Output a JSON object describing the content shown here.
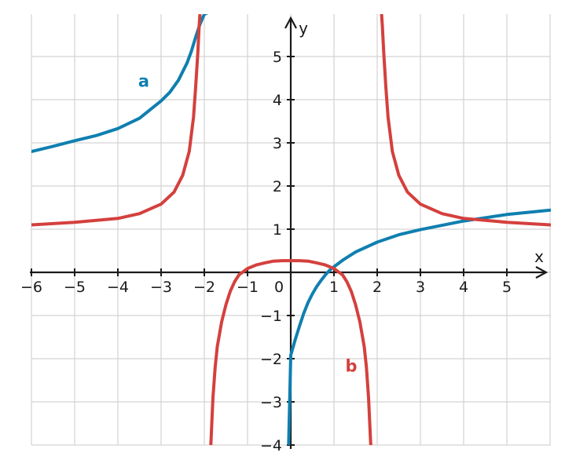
{
  "chart_data": {
    "type": "line",
    "xlabel": "x",
    "ylabel": "y",
    "xlim": [
      -6,
      6
    ],
    "ylim": [
      -4,
      6
    ],
    "x_ticks": [
      -6,
      -5,
      -4,
      -3,
      -2,
      -1,
      1,
      2,
      3,
      4,
      5
    ],
    "y_ticks": [
      -4,
      -3,
      -2,
      -1,
      1,
      2,
      3,
      4,
      5
    ],
    "origin_label": "0",
    "grid": true,
    "colors": {
      "grid": "#d3d3d3",
      "axis": "#1a1a1a"
    },
    "series": [
      {
        "name": "a",
        "color": "#0f7fb0",
        "label_at": [
          -3.4,
          4.3
        ],
        "segments": [
          {
            "x": [
              -6,
              -5.5,
              -5,
              -4.5,
              -4,
              -3.5,
              -3,
              -2.8,
              -2.6,
              -2.4,
              -2.3,
              -2.2,
              -2.1,
              -2.0,
              -1.95
            ],
            "y": [
              2.8,
              2.92,
              3.05,
              3.17,
              3.33,
              3.57,
              3.97,
              4.17,
              4.45,
              4.85,
              5.12,
              5.45,
              5.75,
              5.98,
              6.0
            ]
          },
          {
            "x": [
              -0.05,
              0,
              0.1,
              0.2,
              0.3,
              0.4,
              0.5,
              0.6,
              0.7,
              0.8,
              0.9,
              1.0,
              1.2,
              1.5,
              2.0,
              2.5,
              3.0,
              4.0,
              5.0,
              6.0
            ],
            "y": [
              -4.0,
              -1.92,
              -1.57,
              -1.25,
              -0.95,
              -0.7,
              -0.5,
              -0.33,
              -0.19,
              -0.06,
              0.05,
              0.13,
              0.28,
              0.47,
              0.7,
              0.87,
              0.99,
              1.19,
              1.34,
              1.44
            ]
          }
        ]
      },
      {
        "name": "b",
        "color": "#d4403d",
        "label_at": [
          1.4,
          -2.3
        ],
        "segments": [
          {
            "x": [
              -6,
              -5,
              -4,
              -3.5,
              -3,
              -2.7,
              -2.5,
              -2.35,
              -2.25,
              -2.2,
              -2.15,
              -2.12,
              -2.1
            ],
            "y": [
              1.1,
              1.16,
              1.25,
              1.36,
              1.58,
              1.86,
              2.25,
              2.8,
              3.6,
              4.3,
              5.1,
              5.7,
              6.0
            ]
          },
          {
            "x": [
              -1.85,
              -1.8,
              -1.75,
              -1.7,
              -1.6,
              -1.5,
              -1.4,
              -1.3,
              -1.2,
              -1.0,
              -0.8,
              -0.6,
              -0.4,
              -0.2,
              0,
              0.2,
              0.4,
              0.6,
              0.8,
              1.0,
              1.2,
              1.3,
              1.4,
              1.5,
              1.6,
              1.7,
              1.75,
              1.8,
              1.85
            ],
            "y": [
              -4.0,
              -2.9,
              -2.2,
              -1.72,
              -1.15,
              -0.75,
              -0.44,
              -0.22,
              -0.06,
              0.09,
              0.17,
              0.22,
              0.26,
              0.27,
              0.27,
              0.27,
              0.26,
              0.22,
              0.17,
              0.09,
              -0.06,
              -0.22,
              -0.44,
              -0.75,
              -1.15,
              -1.72,
              -2.2,
              -2.9,
              -4.0
            ]
          },
          {
            "x": [
              2.1,
              2.12,
              2.15,
              2.2,
              2.25,
              2.35,
              2.5,
              2.7,
              3.0,
              3.5,
              4.0,
              5.0,
              6.0
            ],
            "y": [
              6.0,
              5.7,
              5.1,
              4.3,
              3.6,
              2.8,
              2.25,
              1.86,
              1.58,
              1.36,
              1.25,
              1.16,
              1.1
            ]
          }
        ]
      }
    ]
  }
}
